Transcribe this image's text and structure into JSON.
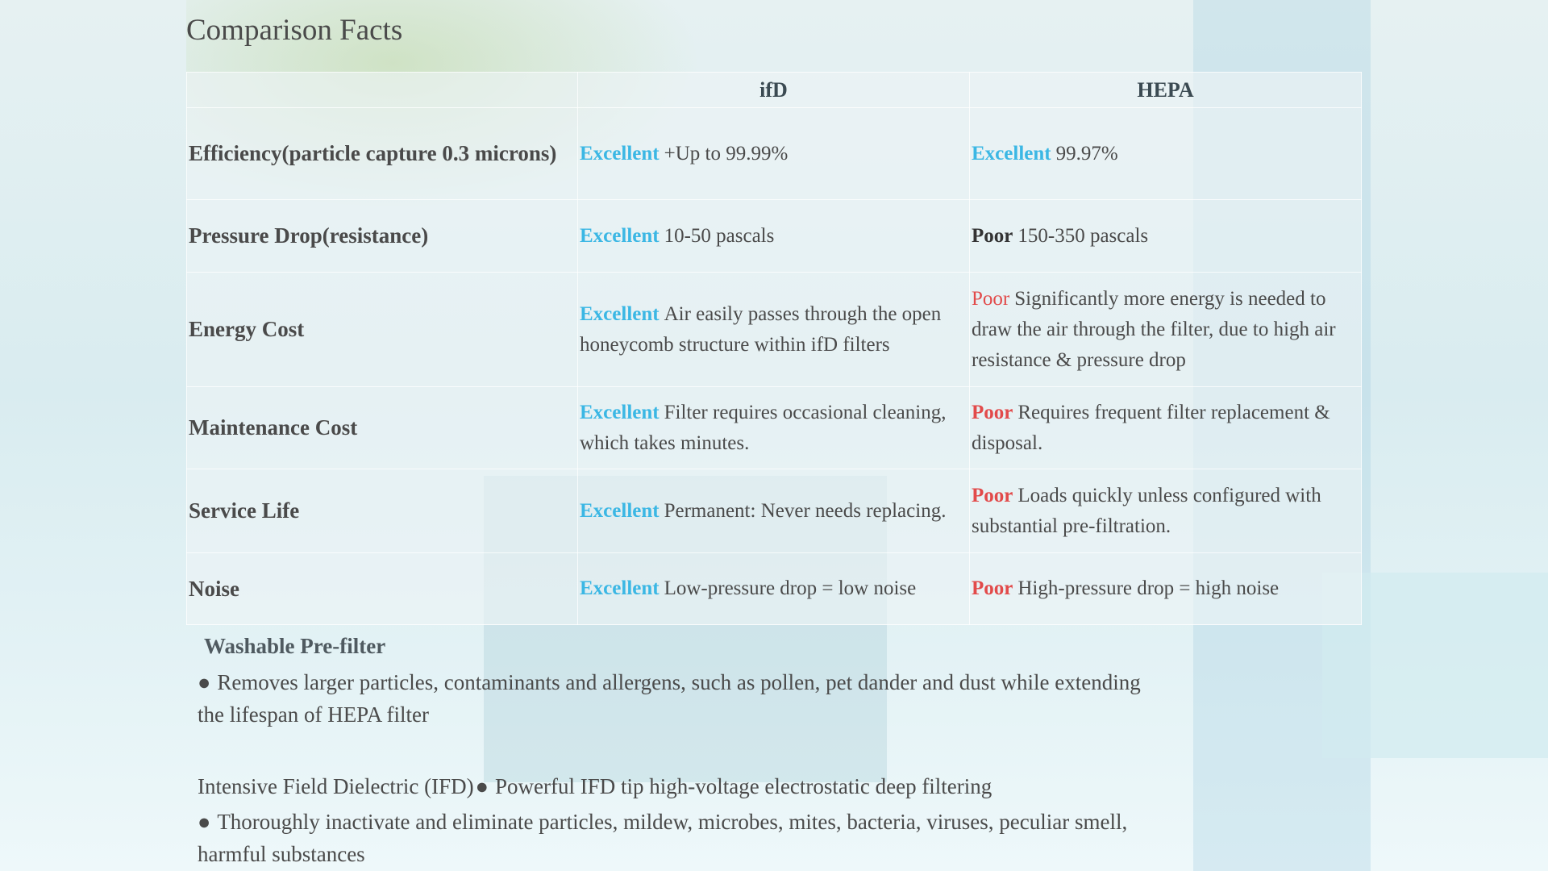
{
  "title": "Comparison Facts",
  "table": {
    "header": [
      "ifD",
      "HEPA"
    ],
    "rows": [
      {
        "label": "Efficiency(particle capture 0.3 microns)",
        "ifd": {
          "rating": "Excellent",
          "text": "+Up to 99.99%"
        },
        "hepa": {
          "rating": "Excellent",
          "text": "99.97%"
        }
      },
      {
        "label": "Pressure Drop(resistance)",
        "ifd": {
          "rating": "Excellent",
          "text": "10-50 pascals"
        },
        "hepa": {
          "rating": "Poor",
          "text": "150-350 pascals"
        }
      },
      {
        "label": "Energy Cost",
        "ifd": {
          "rating": "Excellent",
          "text": "Air easily passes through the open honeycomb structure within ifD filters"
        },
        "hepa": {
          "rating": "Poor",
          "text": "Significantly more energy is needed to draw the air through the filter, due to high air resistance & pressure drop"
        }
      },
      {
        "label": "Maintenance Cost",
        "ifd": {
          "rating": "Excellent",
          "text": "Filter requires occasional cleaning, which takes minutes."
        },
        "hepa": {
          "rating": "Poor",
          "text": "Requires frequent filter replacement & disposal."
        }
      },
      {
        "label": "Service Life",
        "ifd": {
          "rating": "Excellent",
          "text": "Permanent: Never needs replacing."
        },
        "hepa": {
          "rating": "Poor",
          "text": "Loads quickly unless configured with substantial pre-filtration."
        }
      },
      {
        "label": "Noise",
        "ifd": {
          "rating": "Excellent",
          "text": "Low-pressure drop = low noise"
        },
        "hepa": {
          "rating": "Poor",
          "text": "High-pressure drop = high noise"
        }
      }
    ]
  },
  "prefilter": {
    "heading": "Washable Pre-filter",
    "bullet": "Removes larger particles, contaminants and allergens, such as pollen, pet dander and dust while extending the lifespan of HEPA filter"
  },
  "ifd_section": {
    "heading": "Intensive Field Dielectric (IFD)",
    "bullets": [
      "Powerful IFD tip high-voltage electrostatic deep filtering",
      "Thoroughly inactivate and eliminate particles, mildew, microbes, mites, bacteria, viruses, peculiar smell, harmful substances"
    ]
  }
}
